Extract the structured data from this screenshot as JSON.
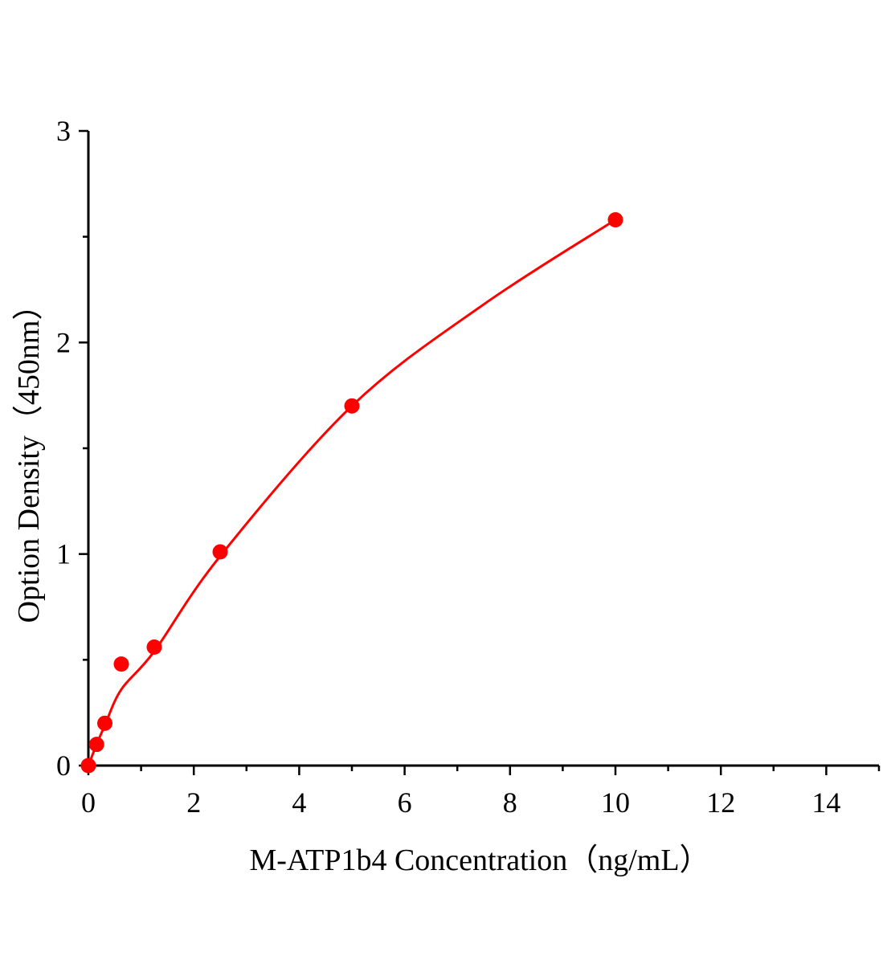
{
  "chart_data": {
    "type": "scatter",
    "title": "",
    "xlabel": "M-ATP1b4 Concentration（ng/mL）",
    "ylabel": "Option Density（450nm）",
    "xlim": [
      0,
      15
    ],
    "ylim": [
      0,
      3
    ],
    "x_ticks": [
      0,
      2,
      4,
      6,
      8,
      10,
      12,
      14
    ],
    "x_tick_labels": [
      "0",
      "2",
      "4",
      "6",
      "8",
      "10",
      "12",
      "14"
    ],
    "y_ticks": [
      0,
      1,
      2,
      3
    ],
    "y_tick_labels": [
      "0",
      "1",
      "2",
      "3"
    ],
    "grid": false,
    "color": "#ff0000",
    "points": {
      "x": [
        0,
        0.156,
        0.3125,
        0.625,
        1.25,
        2.5,
        5,
        10
      ],
      "y": [
        0,
        0.1,
        0.2,
        0.48,
        0.56,
        1.01,
        1.7,
        2.58
      ]
    },
    "fit_curve": {
      "x": [
        0,
        0.156,
        0.3125,
        0.625,
        1.25,
        2.5,
        5,
        7.5,
        10
      ],
      "y": [
        0,
        0.1,
        0.19,
        0.36,
        0.54,
        0.99,
        1.7,
        2.18,
        2.58
      ]
    }
  }
}
